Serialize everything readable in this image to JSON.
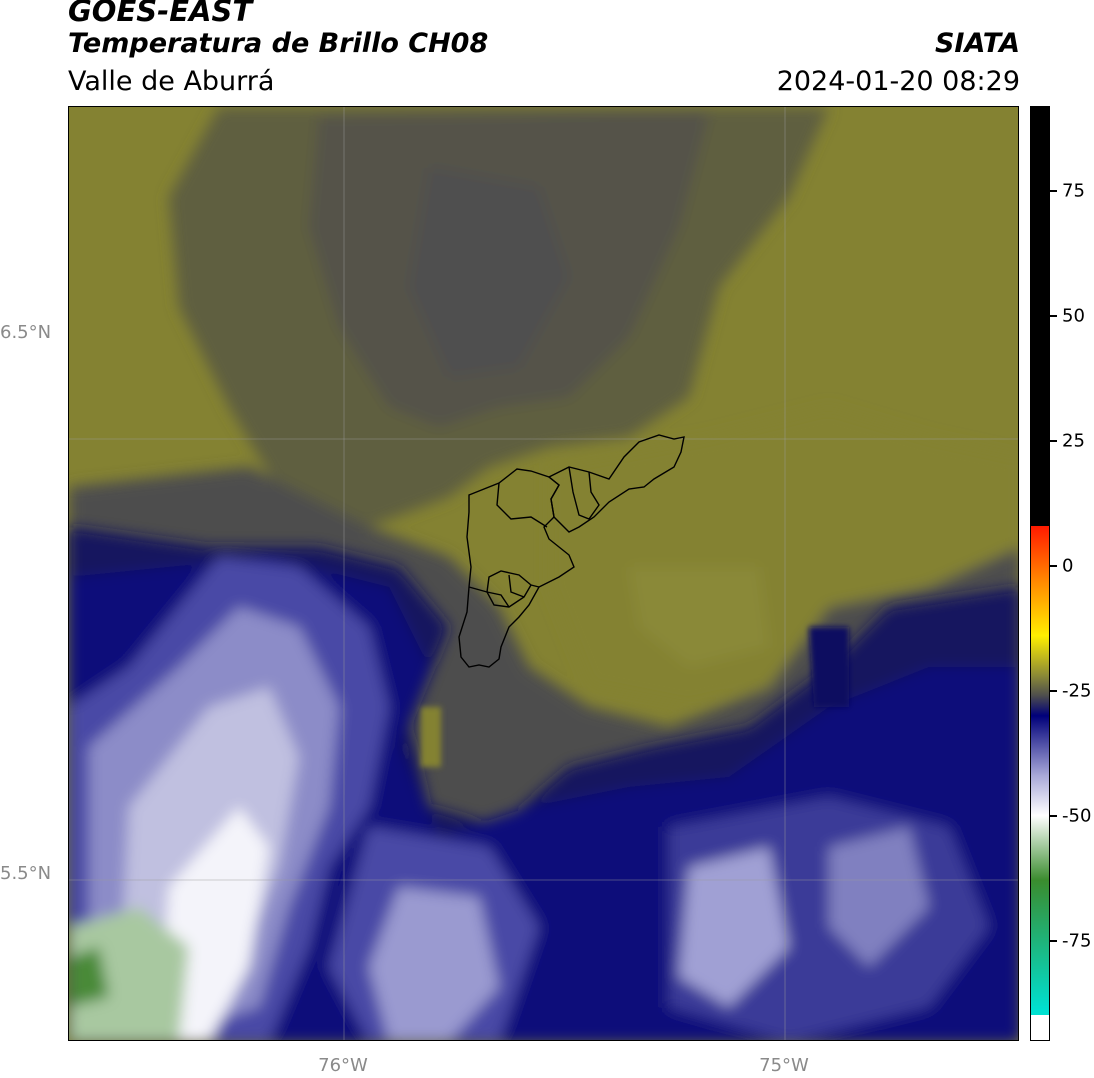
{
  "header": {
    "satellite": "GOES-EAST",
    "product": "Temperatura de Brillo CH08",
    "region": "Valle de Aburrá",
    "agency": "SIATA",
    "timestamp": "2024-01-20 08:29"
  },
  "map": {
    "lat_labels": [
      "6.5°N",
      "5.5°N"
    ],
    "lon_labels": [
      "76°W",
      "75°W"
    ]
  },
  "colorbar": {
    "ticks": [
      "75",
      "50",
      "25",
      "0",
      "-25",
      "-50",
      "-75"
    ],
    "tick_values": [
      75,
      50,
      25,
      0,
      -25,
      -50,
      -75
    ],
    "range": [
      -95,
      92
    ],
    "colors": {
      "black": "#000000",
      "red": "#ff1a00",
      "orange": "#ff8800",
      "yellow": "#ffee00",
      "olive": "#8a8936",
      "gray": "#4d4d4d",
      "navy": "#00007a",
      "lavender": "#a8a8d8",
      "white": "#ffffff",
      "green": "#3a8c2e",
      "cyan": "#00e0d0"
    }
  }
}
